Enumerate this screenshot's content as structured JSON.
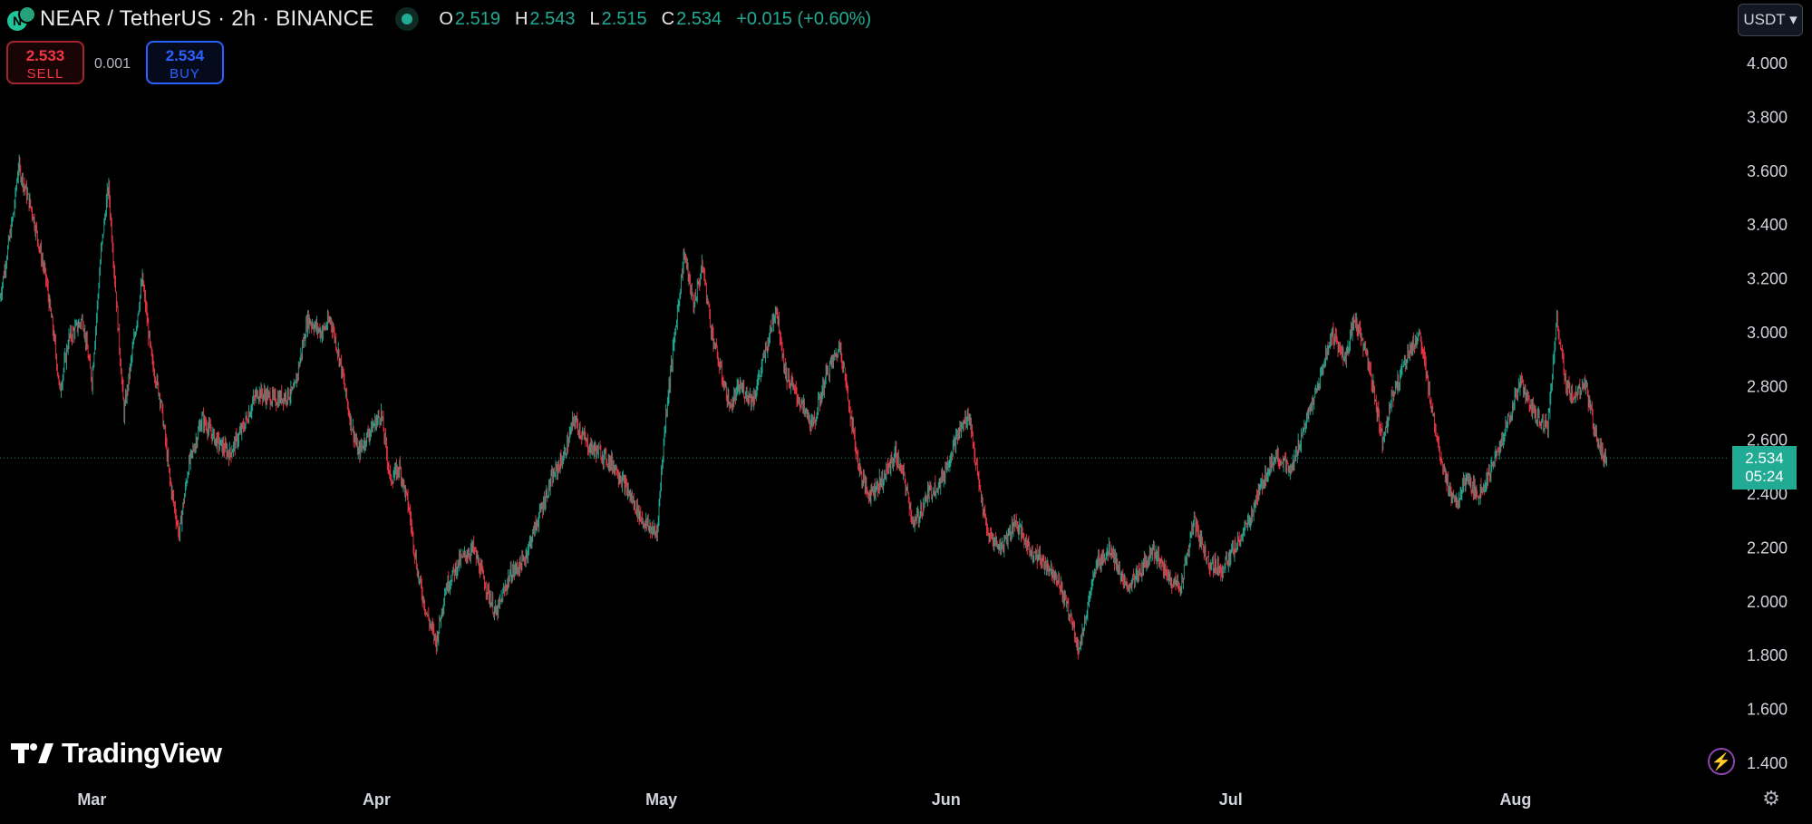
{
  "header": {
    "symbol_title": "NEAR / TetherUS · 2h · BINANCE",
    "icon": "near-tether-pair-icon",
    "ohlc": {
      "o_label": "O",
      "o": "2.519",
      "h_label": "H",
      "h": "2.543",
      "l_label": "L",
      "l": "2.515",
      "c_label": "C",
      "c": "2.534",
      "change": "+0.015 (+0.60%)"
    }
  },
  "trade": {
    "sell_price": "2.533",
    "sell_label": "SELL",
    "spread": "0.001",
    "buy_price": "2.534",
    "buy_label": "BUY"
  },
  "currency_selector": "USDT ▾",
  "last_price_tag": {
    "price": "2.534",
    "countdown": "05:24"
  },
  "branding": {
    "logo_text": "TradingView"
  },
  "colors": {
    "up": "#22ab94",
    "down": "#f23645",
    "background": "#000000",
    "axis_text": "#d1d4dc"
  },
  "chart_data": {
    "type": "line",
    "title": "NEAR / TetherUS · 2h · BINANCE",
    "xlabel": "",
    "ylabel": "",
    "ylim": [
      1.4,
      4.0
    ],
    "y_ticks": [
      "4.000",
      "3.800",
      "3.600",
      "3.400",
      "3.200",
      "3.000",
      "2.800",
      "2.600",
      "2.400",
      "2.200",
      "2.000",
      "1.800",
      "1.600",
      "1.400"
    ],
    "x_ticks": [
      "Mar",
      "Apr",
      "May",
      "Jun",
      "Jul",
      "Aug"
    ],
    "x_tick_days": [
      2,
      33,
      64,
      95,
      126,
      157
    ],
    "xlim_days": [
      -8,
      180
    ],
    "last_price": 2.534,
    "grid": false,
    "series": [
      {
        "values": [
          {
            "d": -8,
            "p": 3.13
          },
          {
            "d": -6.5,
            "p": 3.45
          },
          {
            "d": -6,
            "p": 3.62
          },
          {
            "d": -4.5,
            "p": 3.45
          },
          {
            "d": -3,
            "p": 3.2
          },
          {
            "d": -2,
            "p": 2.95
          },
          {
            "d": -1.5,
            "p": 2.78
          },
          {
            "d": -0.5,
            "p": 2.98
          },
          {
            "d": 1,
            "p": 3.05
          },
          {
            "d": 2,
            "p": 2.82
          },
          {
            "d": 3,
            "p": 3.3
          },
          {
            "d": 3.8,
            "p": 3.55
          },
          {
            "d": 4.5,
            "p": 3.2
          },
          {
            "d": 5.5,
            "p": 2.7
          },
          {
            "d": 6.5,
            "p": 2.95
          },
          {
            "d": 7.5,
            "p": 3.2
          },
          {
            "d": 8.5,
            "p": 2.9
          },
          {
            "d": 9.5,
            "p": 2.75
          },
          {
            "d": 10.5,
            "p": 2.45
          },
          {
            "d": 11.5,
            "p": 2.25
          },
          {
            "d": 12.5,
            "p": 2.5
          },
          {
            "d": 14,
            "p": 2.68
          },
          {
            "d": 15.5,
            "p": 2.6
          },
          {
            "d": 17,
            "p": 2.55
          },
          {
            "d": 18.5,
            "p": 2.65
          },
          {
            "d": 20,
            "p": 2.78
          },
          {
            "d": 22,
            "p": 2.75
          },
          {
            "d": 24,
            "p": 2.78
          },
          {
            "d": 25.5,
            "p": 3.05
          },
          {
            "d": 27,
            "p": 3.0
          },
          {
            "d": 28,
            "p": 3.05
          },
          {
            "d": 29,
            "p": 2.9
          },
          {
            "d": 30,
            "p": 2.7
          },
          {
            "d": 31,
            "p": 2.55
          },
          {
            "d": 32,
            "p": 2.62
          },
          {
            "d": 33.5,
            "p": 2.7
          },
          {
            "d": 34.5,
            "p": 2.45
          },
          {
            "d": 35.5,
            "p": 2.5
          },
          {
            "d": 36.5,
            "p": 2.35
          },
          {
            "d": 37.5,
            "p": 2.1
          },
          {
            "d": 38.5,
            "p": 1.95
          },
          {
            "d": 39.5,
            "p": 1.85
          },
          {
            "d": 40.5,
            "p": 2.05
          },
          {
            "d": 42,
            "p": 2.15
          },
          {
            "d": 43.5,
            "p": 2.2
          },
          {
            "d": 45,
            "p": 2.05
          },
          {
            "d": 46,
            "p": 1.95
          },
          {
            "d": 47.5,
            "p": 2.1
          },
          {
            "d": 49,
            "p": 2.15
          },
          {
            "d": 50.5,
            "p": 2.3
          },
          {
            "d": 52,
            "p": 2.45
          },
          {
            "d": 53.5,
            "p": 2.55
          },
          {
            "d": 54.5,
            "p": 2.68
          },
          {
            "d": 56,
            "p": 2.58
          },
          {
            "d": 57.5,
            "p": 2.55
          },
          {
            "d": 59,
            "p": 2.5
          },
          {
            "d": 60.5,
            "p": 2.4
          },
          {
            "d": 62,
            "p": 2.3
          },
          {
            "d": 63.5,
            "p": 2.25
          },
          {
            "d": 64.5,
            "p": 2.7
          },
          {
            "d": 65.5,
            "p": 3.0
          },
          {
            "d": 66.5,
            "p": 3.3
          },
          {
            "d": 67.5,
            "p": 3.1
          },
          {
            "d": 68.5,
            "p": 3.25
          },
          {
            "d": 69.5,
            "p": 3.0
          },
          {
            "d": 70.5,
            "p": 2.85
          },
          {
            "d": 71.5,
            "p": 2.72
          },
          {
            "d": 72.5,
            "p": 2.8
          },
          {
            "d": 74,
            "p": 2.75
          },
          {
            "d": 75.5,
            "p": 2.95
          },
          {
            "d": 76.5,
            "p": 3.1
          },
          {
            "d": 77.5,
            "p": 2.85
          },
          {
            "d": 79,
            "p": 2.75
          },
          {
            "d": 80.5,
            "p": 2.65
          },
          {
            "d": 82,
            "p": 2.85
          },
          {
            "d": 83.5,
            "p": 2.95
          },
          {
            "d": 84.5,
            "p": 2.72
          },
          {
            "d": 85.5,
            "p": 2.5
          },
          {
            "d": 86.5,
            "p": 2.4
          },
          {
            "d": 88,
            "p": 2.45
          },
          {
            "d": 89.5,
            "p": 2.55
          },
          {
            "d": 90.5,
            "p": 2.45
          },
          {
            "d": 91.5,
            "p": 2.28
          },
          {
            "d": 93,
            "p": 2.4
          },
          {
            "d": 94.5,
            "p": 2.45
          },
          {
            "d": 96,
            "p": 2.6
          },
          {
            "d": 97.5,
            "p": 2.7
          },
          {
            "d": 98.5,
            "p": 2.45
          },
          {
            "d": 99.5,
            "p": 2.25
          },
          {
            "d": 101,
            "p": 2.2
          },
          {
            "d": 102.5,
            "p": 2.3
          },
          {
            "d": 104,
            "p": 2.2
          },
          {
            "d": 105.5,
            "p": 2.15
          },
          {
            "d": 107,
            "p": 2.1
          },
          {
            "d": 108.5,
            "p": 1.95
          },
          {
            "d": 109.5,
            "p": 1.82
          },
          {
            "d": 110.5,
            "p": 2.0
          },
          {
            "d": 111.5,
            "p": 2.15
          },
          {
            "d": 113,
            "p": 2.2
          },
          {
            "d": 114.5,
            "p": 2.05
          },
          {
            "d": 116,
            "p": 2.1
          },
          {
            "d": 117.5,
            "p": 2.2
          },
          {
            "d": 119,
            "p": 2.1
          },
          {
            "d": 120.5,
            "p": 2.05
          },
          {
            "d": 122,
            "p": 2.3
          },
          {
            "d": 123.5,
            "p": 2.15
          },
          {
            "d": 125,
            "p": 2.12
          },
          {
            "d": 126.5,
            "p": 2.2
          },
          {
            "d": 128,
            "p": 2.3
          },
          {
            "d": 129.5,
            "p": 2.45
          },
          {
            "d": 131,
            "p": 2.55
          },
          {
            "d": 132.5,
            "p": 2.48
          },
          {
            "d": 134,
            "p": 2.65
          },
          {
            "d": 135.5,
            "p": 2.8
          },
          {
            "d": 137,
            "p": 3.0
          },
          {
            "d": 138.5,
            "p": 2.9
          },
          {
            "d": 139.5,
            "p": 3.05
          },
          {
            "d": 140.5,
            "p": 2.95
          },
          {
            "d": 141.5,
            "p": 2.8
          },
          {
            "d": 142.5,
            "p": 2.6
          },
          {
            "d": 143.5,
            "p": 2.75
          },
          {
            "d": 145,
            "p": 2.9
          },
          {
            "d": 146.5,
            "p": 3.0
          },
          {
            "d": 147.5,
            "p": 2.8
          },
          {
            "d": 148.5,
            "p": 2.6
          },
          {
            "d": 149.5,
            "p": 2.45
          },
          {
            "d": 150.5,
            "p": 2.35
          },
          {
            "d": 151.5,
            "p": 2.45
          },
          {
            "d": 153,
            "p": 2.4
          },
          {
            "d": 154.5,
            "p": 2.5
          },
          {
            "d": 156,
            "p": 2.65
          },
          {
            "d": 157.5,
            "p": 2.82
          },
          {
            "d": 159,
            "p": 2.7
          },
          {
            "d": 160.5,
            "p": 2.65
          },
          {
            "d": 161.5,
            "p": 3.05
          },
          {
            "d": 162.5,
            "p": 2.8
          },
          {
            "d": 163.5,
            "p": 2.75
          },
          {
            "d": 164.5,
            "p": 2.82
          },
          {
            "d": 165.5,
            "p": 2.65
          },
          {
            "d": 166.5,
            "p": 2.55
          },
          {
            "d": 167,
            "p": 2.534
          }
        ]
      }
    ]
  }
}
